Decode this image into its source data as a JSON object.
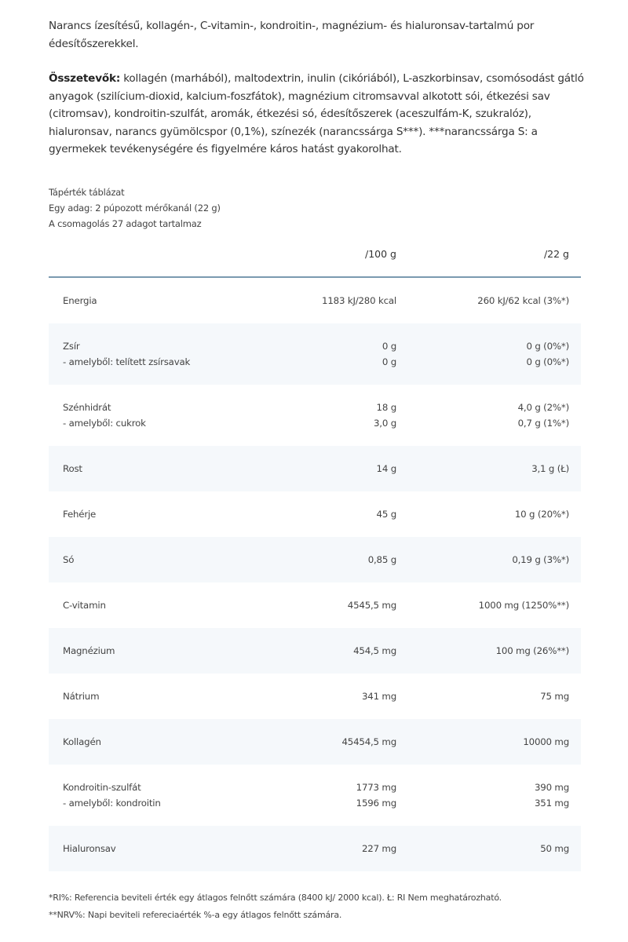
{
  "intro": "Narancs ízesítésű, kollagén-, C-vitamin-, kondroitin-, magnézium- és hialuronsav-tartalmú por édesítőszerekkel.",
  "ingredients_label": "Összetevők:",
  "ingredients": " kollagén (marhából), maltodextrin, inulin (cikóriából), L-aszkorbinsav, csomósodást gátló anyagok (szilícium-dioxid, kalcium-foszfátok), magnézium citromsavval alkotott sói, étkezési sav (citromsav), kondroitin-szulfát, aromák, étkezési só, édesítőszerek (aceszulfám-K, szukralóz), hialuronsav, narancs gyümölcspor (0,1%), színezék (narancssárga S***). ***narancssárga S: a gyermekek tevékenységére és figyelmére káros hatást gyakorolhat.",
  "meta": [
    "Tápérték táblázat",
    "Egy adag: 2 púpozott mérőkanál (22 g)",
    "A csomagolás 27 adagot tartalmaz"
  ],
  "table": {
    "headers": [
      "",
      "/100 g",
      "/22 g"
    ],
    "rows": [
      {
        "lines": [
          [
            "Energia",
            "1183 kJ/280 kcal",
            "260 kJ/62 kcal (3%*)"
          ]
        ]
      },
      {
        "lines": [
          [
            "Zsír",
            "0 g",
            "0 g (0%*)"
          ],
          [
            "- amelyből: telített zsírsavak",
            "0 g",
            "0 g (0%*)"
          ]
        ]
      },
      {
        "lines": [
          [
            "Szénhidrát",
            "18 g",
            "4,0 g (2%*)"
          ],
          [
            "- amelyből: cukrok",
            "3,0 g",
            "0,7 g (1%*)"
          ]
        ]
      },
      {
        "lines": [
          [
            "Rost",
            "14 g",
            "3,1 g (Ł)"
          ]
        ]
      },
      {
        "lines": [
          [
            "Fehérje",
            "45 g",
            "10 g (20%*)"
          ]
        ]
      },
      {
        "lines": [
          [
            "Só",
            "0,85 g",
            "0,19 g (3%*)"
          ]
        ]
      },
      {
        "lines": [
          [
            "C-vitamin",
            "4545,5 mg",
            "1000 mg (1250%**)"
          ]
        ]
      },
      {
        "lines": [
          [
            "Magnézium",
            "454,5 mg",
            "100 mg (26%**)"
          ]
        ]
      },
      {
        "lines": [
          [
            "Nátrium",
            "341 mg",
            "75 mg"
          ]
        ]
      },
      {
        "lines": [
          [
            "Kollagén",
            "45454,5 mg",
            "10000 mg"
          ]
        ]
      },
      {
        "lines": [
          [
            "Kondroitin-szulfát",
            "1773 mg",
            "390 mg"
          ],
          [
            "- amelyből: kondroitin",
            "1596 mg",
            "351 mg"
          ]
        ]
      },
      {
        "lines": [
          [
            "Hialuronsav",
            "227 mg",
            "50 mg"
          ]
        ]
      }
    ]
  },
  "footnotes": [
    "*RI%: Referencia beviteli érték egy átlagos felnőtt számára (8400 kJ/ 2000 kcal). Ł: RI Nem meghatározható.",
    "**NRV%: Napi beviteli refereciaérték %-a egy átlagos felnőtt számára."
  ],
  "colors": {
    "header_rule": "#7a9ab0",
    "row_shade": "#f5f8fb"
  }
}
